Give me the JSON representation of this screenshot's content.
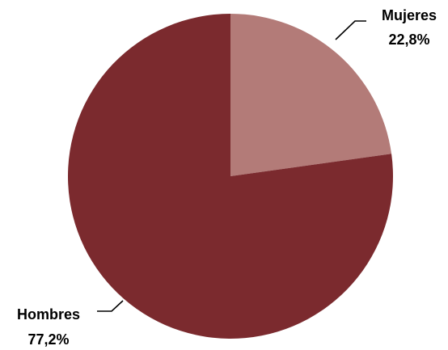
{
  "chart_data": {
    "type": "pie",
    "title": "",
    "slices": [
      {
        "label": "Mujeres",
        "value": 22.8,
        "value_text": "22,8%",
        "color": "#b37b78"
      },
      {
        "label": "Hombres",
        "value": 77.2,
        "value_text": "77,2%",
        "color": "#7b2a2e"
      }
    ],
    "start": "12 o'clock",
    "direction": "clockwise",
    "legend": "none",
    "data_labels": "outside with leader lines"
  }
}
